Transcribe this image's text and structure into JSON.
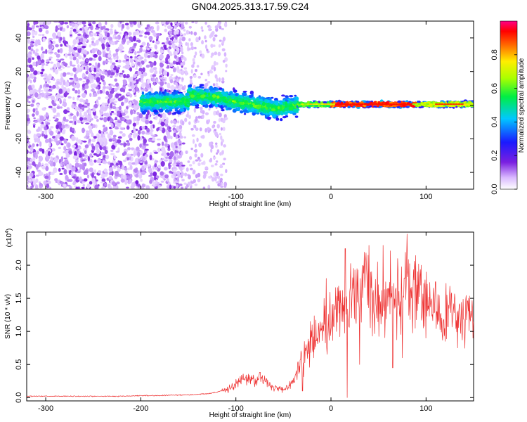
{
  "title": "GN04.2025.313.17.59.C24",
  "chart_data": [
    {
      "type": "heatmap",
      "xlabel": "Height of straight line (km)",
      "ylabel": "Frequency (Hz)",
      "xlim": [
        -320,
        150
      ],
      "ylim": [
        -50,
        50
      ],
      "xticks": [
        -300,
        -200,
        -100,
        0,
        100
      ],
      "xtick_labels": [
        "-300",
        "-200",
        "-100",
        "0",
        "100"
      ],
      "yticks": [
        -40,
        -20,
        0,
        20,
        40
      ],
      "ytick_labels": [
        "-40",
        "-20",
        "0",
        "20",
        "40"
      ],
      "colorbar": {
        "label": "Normalized spectral amplitude",
        "range": [
          0,
          1
        ],
        "ticks": [
          0.0,
          0.2,
          0.4,
          0.6,
          0.8
        ],
        "tick_labels": [
          "0.0",
          "0.2",
          "0.4",
          "0.6",
          "0.8"
        ],
        "colormap": "rainbow (white-violet-blue-cyan-green-yellow-red-magenta)"
      },
      "features": [
        {
          "region_km": [
            -320,
            -155
          ],
          "freq_hz": [
            -50,
            50
          ],
          "amplitude": [
            0.05,
            0.3
          ],
          "note": "broadband noise"
        },
        {
          "region_km": [
            -200,
            -140
          ],
          "freq_hz": [
            -5,
            10
          ],
          "amplitude": [
            0.2,
            0.5
          ]
        },
        {
          "region_km": [
            -140,
            -35
          ],
          "freq_hz": [
            -15,
            12
          ],
          "amplitude": [
            0.2,
            0.6
          ]
        },
        {
          "region_km": [
            -35,
            150
          ],
          "freq_hz": [
            -3,
            3
          ],
          "amplitude": [
            0.3,
            1.0
          ],
          "note": "narrow band near 0 Hz, peak amplitude ~0.9-1.0"
        }
      ]
    },
    {
      "type": "line",
      "xlabel": "Height of straight line (km)",
      "ylabel": "SNR (10 * v/v)",
      "y_scale_label": "(x10",
      "y_scale_exp": "4",
      "y_scale_close": ")",
      "xlim": [
        -320,
        150
      ],
      "ylim": [
        -0.05,
        2.5
      ],
      "xticks": [
        -300,
        -200,
        -100,
        0,
        100
      ],
      "xtick_labels": [
        "-300",
        "-200",
        "-100",
        "0",
        "100"
      ],
      "yticks": [
        0.0,
        0.5,
        1.0,
        1.5,
        2.0
      ],
      "ytick_labels": [
        "0.0",
        "0.5",
        "1.0",
        "1.5",
        "2.0"
      ],
      "line_color": "#ee3333",
      "series": [
        {
          "x": [
            -320,
            -300,
            -280,
            -260,
            -240,
            -220,
            -200,
            -180,
            -160,
            -150,
            -140,
            -130,
            -120,
            -110,
            -100,
            -95,
            -90,
            -85,
            -80,
            -75,
            -70,
            -65,
            -60,
            -55,
            -50,
            -45,
            -40,
            -35,
            -30,
            -25,
            -20,
            -15,
            -10,
            -5,
            0,
            5,
            10,
            15,
            20,
            25,
            30,
            35,
            40,
            45,
            50,
            55,
            60,
            65,
            70,
            75,
            80,
            85,
            90,
            95,
            100,
            105,
            110,
            115,
            120,
            125,
            130,
            135,
            140,
            145,
            150
          ],
          "values": [
            0.02,
            0.02,
            0.02,
            0.02,
            0.02,
            0.02,
            0.03,
            0.03,
            0.04,
            0.04,
            0.05,
            0.06,
            0.08,
            0.12,
            0.2,
            0.25,
            0.28,
            0.3,
            0.28,
            0.3,
            0.25,
            0.2,
            0.15,
            0.12,
            0.12,
            0.15,
            0.25,
            0.45,
            0.6,
            0.7,
            0.85,
            0.95,
            1.05,
            1.1,
            1.2,
            1.3,
            1.4,
            1.35,
            1.45,
            1.5,
            1.55,
            1.6,
            1.65,
            1.5,
            1.55,
            1.4,
            1.5,
            1.6,
            1.55,
            1.65,
            1.7,
            1.6,
            1.55,
            1.45,
            1.4,
            1.45,
            1.35,
            1.3,
            1.25,
            1.3,
            1.25,
            1.2,
            1.2,
            1.3,
            1.25
          ],
          "peaks": [
            [
              -94,
              0.34
            ],
            [
              -75,
              0.38
            ],
            [
              -20,
              1.1
            ],
            [
              -5,
              1.8
            ],
            [
              15,
              2.25
            ],
            [
              40,
              2.3
            ],
            [
              45,
              1.3
            ],
            [
              55,
              2.3
            ],
            [
              63,
              1.5
            ],
            [
              70,
              2.1
            ],
            [
              80,
              2.47
            ],
            [
              95,
              2.0
            ],
            [
              110,
              1.75
            ],
            [
              122,
              1.55
            ],
            [
              135,
              1.4
            ],
            [
              145,
              1.5
            ]
          ],
          "dips": [
            [
              -30,
              0.1
            ],
            [
              17,
              0.0
            ],
            [
              30,
              0.5
            ],
            [
              65,
              0.45
            ],
            [
              75,
              0.6
            ],
            [
              100,
              0.9
            ],
            [
              120,
              0.85
            ],
            [
              133,
              0.75
            ]
          ]
        }
      ]
    }
  ]
}
